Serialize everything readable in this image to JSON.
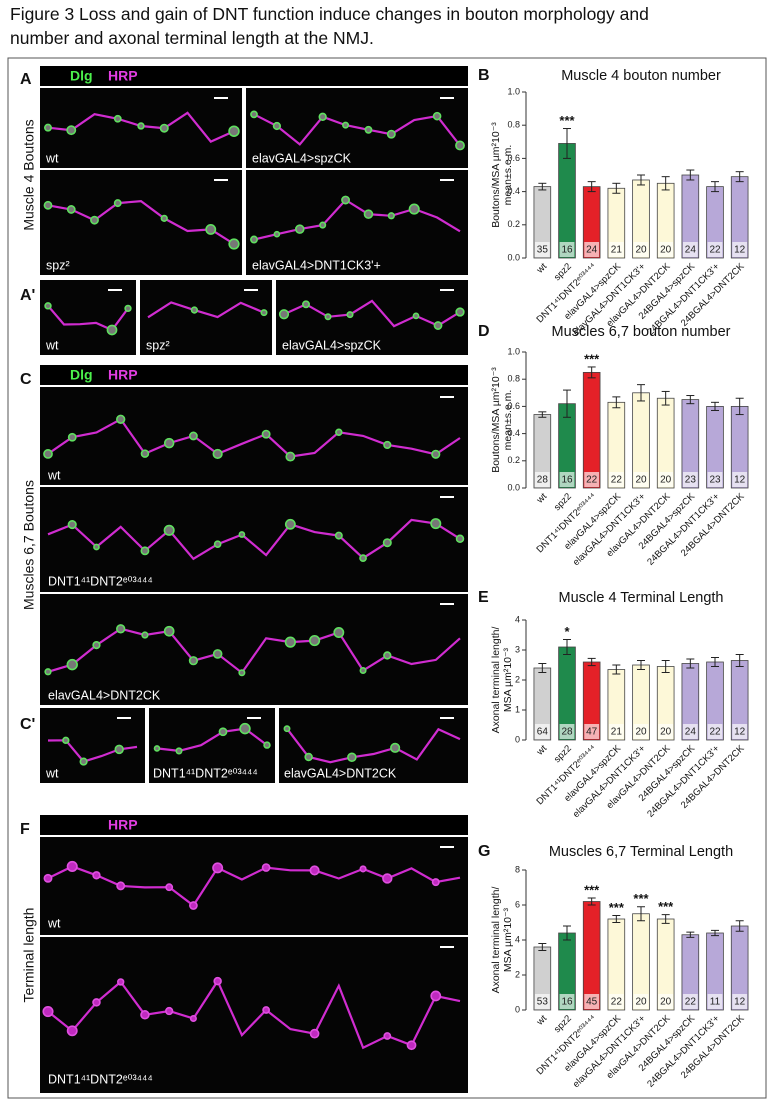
{
  "figure_title": [
    "Figure 3   Loss and gain of DNT function induce changes in bouton morphology and",
    "number and axonal terminal length at the NMJ."
  ],
  "panels": {
    "A": {
      "letter": "A",
      "side_label": "Muscle 4 Boutons",
      "stains": [
        "Dlg",
        "HRP"
      ],
      "labels": [
        "wt",
        "elavGAL4>spzCK",
        "spz²",
        "elavGAL4>DNT1CK3'+"
      ]
    },
    "A_prime": {
      "letter": "A'",
      "labels": [
        "wt",
        "spz²",
        "elavGAL4>spzCK"
      ]
    },
    "C": {
      "letter": "C",
      "side_label": "Muscles 6,7 Boutons",
      "stains": [
        "Dlg",
        "HRP"
      ],
      "labels": [
        "wt",
        "DNT1⁴¹DNT2ᵉ⁰³⁴⁴⁴",
        "elavGAL4>DNT2CK"
      ]
    },
    "C_prime": {
      "letter": "C'",
      "labels": [
        "wt",
        "DNT1⁴¹DNT2ᵉ⁰³⁴⁴⁴",
        "elavGAL4>DNT2CK"
      ]
    },
    "F": {
      "letter": "F",
      "side_label": "Terminal length",
      "stains": [
        "HRP"
      ],
      "labels": [
        "wt",
        "DNT1⁴¹DNT2ᵉ⁰³⁴⁴⁴"
      ]
    }
  },
  "chart_data": [
    {
      "type": "bar",
      "letter": "B",
      "title": "Muscle 4 bouton number",
      "ylabel": [
        "Boutons/MSA µm²10⁻³",
        "mean±s.e.m."
      ],
      "categories": [
        "wt",
        "spz2",
        "DNT1⁴¹DNT2ᵉ⁰³⁴⁴⁴",
        "elavGAL4>spzCK",
        "elavGAL4>DNT1CK3'+",
        "elavGAL4>DNT2CK",
        "24BGAL4>spzCK",
        "24BGAL4>DNT1CK3'+",
        "24BGAL4>DNT2CK"
      ],
      "values": [
        0.43,
        0.69,
        0.43,
        0.42,
        0.47,
        0.45,
        0.5,
        0.43,
        0.49
      ],
      "errors": [
        0.02,
        0.09,
        0.03,
        0.03,
        0.03,
        0.04,
        0.03,
        0.03,
        0.03
      ],
      "n": [
        35,
        16,
        24,
        21,
        20,
        20,
        24,
        22,
        12
      ],
      "significance": [
        null,
        "***",
        null,
        null,
        null,
        null,
        null,
        null,
        null
      ],
      "colors": [
        "#d0d0d0",
        "#1f8a4c",
        "#e42128",
        "#fdf8d8",
        "#fdf8d8",
        "#fdf8d8",
        "#b7a8d8",
        "#b7a8d8",
        "#b7a8d8"
      ],
      "ylim": [
        0,
        1.0
      ],
      "yticks": [
        {
          "value": 0,
          "label": "0.0"
        },
        0.2,
        0.4,
        0.6,
        0.8,
        {
          "value": 1.0,
          "label": "1.0"
        }
      ]
    },
    {
      "type": "bar",
      "letter": "D",
      "title": "Muscles 6,7 bouton number",
      "ylabel": [
        "Boutons/MSA µm²10⁻³",
        "mean±s.e.m."
      ],
      "categories": [
        "wt",
        "spz2",
        "DNT1⁴¹DNT2ᵉ⁰³⁴⁴⁴",
        "elavGAL4>spzCK",
        "elavGAL4>DNT1CK3'+",
        "elavGAL4>DNT2CK",
        "24BGAL4>spzCK",
        "24BGAL4>DNT1CK3'+",
        "24BGAL4>DNT2CK"
      ],
      "values": [
        0.54,
        0.62,
        0.85,
        0.63,
        0.7,
        0.66,
        0.65,
        0.6,
        0.6
      ],
      "errors": [
        0.02,
        0.1,
        0.04,
        0.04,
        0.06,
        0.05,
        0.03,
        0.03,
        0.06
      ],
      "n": [
        28,
        16,
        22,
        22,
        20,
        20,
        23,
        23,
        12
      ],
      "significance": [
        null,
        null,
        "***",
        null,
        null,
        null,
        null,
        null,
        null
      ],
      "colors": [
        "#d0d0d0",
        "#1f8a4c",
        "#e42128",
        "#fdf8d8",
        "#fdf8d8",
        "#fdf8d8",
        "#b7a8d8",
        "#b7a8d8",
        "#b7a8d8"
      ],
      "ylim": [
        0,
        1.0
      ],
      "yticks": [
        {
          "value": 0,
          "label": "0.0"
        },
        0.2,
        0.4,
        0.6,
        0.8,
        {
          "value": 1.0,
          "label": "1.0"
        }
      ]
    },
    {
      "type": "bar",
      "letter": "E",
      "title": "Muscle 4 Terminal Length",
      "ylabel": [
        "Axonal terminal length/",
        "MSA µm²10⁻³"
      ],
      "categories": [
        "wt",
        "spz2",
        "DNT1⁴¹DNT2ᵉ⁰³⁴⁴⁴",
        "elavGAL4>spzCK",
        "elavGAL4>DNT1CK3'+",
        "elavGAL4>DNT2CK",
        "24BGAL4>spzCK",
        "24BGAL4>DNT1CK3'+",
        "24BGAL4>DNT2CK"
      ],
      "values": [
        2.4,
        3.1,
        2.6,
        2.35,
        2.5,
        2.45,
        2.55,
        2.6,
        2.65
      ],
      "errors": [
        0.15,
        0.25,
        0.12,
        0.15,
        0.15,
        0.2,
        0.15,
        0.15,
        0.2
      ],
      "n": [
        64,
        28,
        47,
        21,
        20,
        20,
        24,
        22,
        12
      ],
      "significance": [
        null,
        "*",
        null,
        null,
        null,
        null,
        null,
        null,
        null
      ],
      "colors": [
        "#d0d0d0",
        "#1f8a4c",
        "#e42128",
        "#fdf8d8",
        "#fdf8d8",
        "#fdf8d8",
        "#b7a8d8",
        "#b7a8d8",
        "#b7a8d8"
      ],
      "ylim": [
        0,
        4
      ],
      "yticks": [
        0,
        1,
        2,
        3,
        4
      ]
    },
    {
      "type": "bar",
      "letter": "G",
      "title": "Muscles 6,7 Terminal Length",
      "ylabel": [
        "Axonal terminal length/",
        "MSA µm²10⁻³"
      ],
      "categories": [
        "wt",
        "spz2",
        "DNT1⁴¹DNT2ᵉ⁰³⁴⁴⁴",
        "elavGAL4>spzCK",
        "elavGAL4>DNT1CK3'+",
        "elavGAL4>DNT2CK",
        "24BGAL4>spzCK",
        "24BGAL4>DNT1CK3'+",
        "24BGAL4>DNT2CK"
      ],
      "values": [
        3.6,
        4.4,
        6.2,
        5.2,
        5.5,
        5.2,
        4.3,
        4.4,
        4.8
      ],
      "errors": [
        0.2,
        0.4,
        0.2,
        0.2,
        0.4,
        0.25,
        0.15,
        0.15,
        0.3
      ],
      "n": [
        53,
        16,
        45,
        22,
        20,
        20,
        22,
        11,
        12
      ],
      "significance": [
        null,
        null,
        "***",
        "***",
        "***",
        "***",
        null,
        null,
        null
      ],
      "colors": [
        "#d0d0d0",
        "#1f8a4c",
        "#e42128",
        "#fdf8d8",
        "#fdf8d8",
        "#fdf8d8",
        "#b7a8d8",
        "#b7a8d8",
        "#b7a8d8"
      ],
      "ylim": [
        0,
        8
      ],
      "yticks": [
        0,
        2,
        4,
        6,
        8
      ]
    }
  ]
}
